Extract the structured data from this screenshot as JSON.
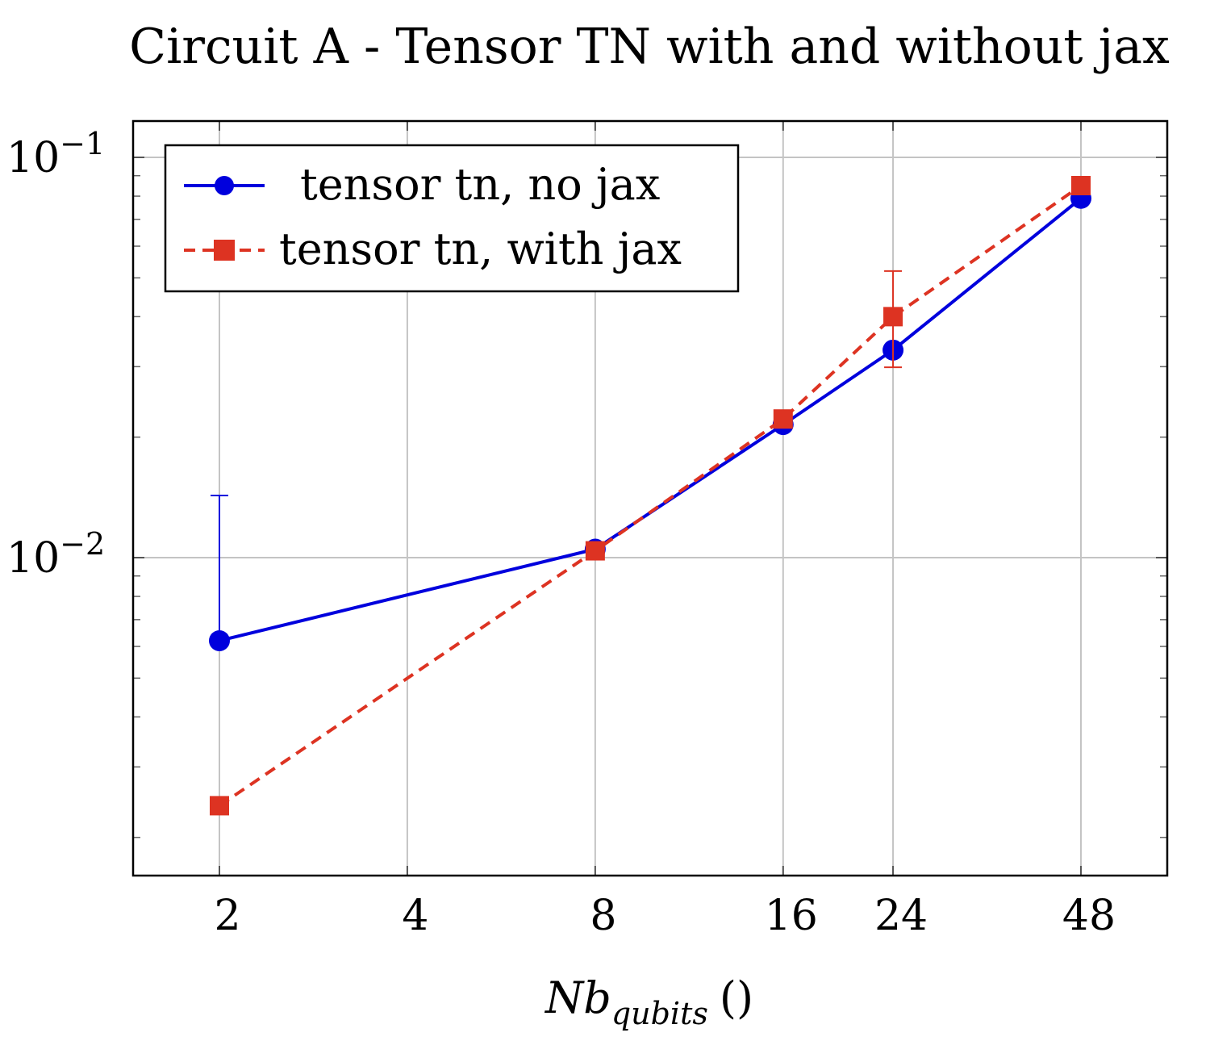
{
  "chart_data": {
    "type": "line",
    "title": "Circuit A - Tensor TN with and without jax",
    "xlabel": {
      "main": "Nb",
      "sub": "qubits",
      "units": "()"
    },
    "ylabel": "",
    "x_categories": [
      "2",
      "4",
      "8",
      "16",
      "24",
      "48"
    ],
    "x_scale": "log2",
    "y_scale": "log",
    "ylim": [
      0.0017,
      0.12
    ],
    "y_ticks": [
      {
        "base": "10",
        "exp": "−1",
        "value": 0.1
      },
      {
        "base": "10",
        "exp": "−2",
        "value": 0.01
      }
    ],
    "grid": true,
    "legend_position": "top-left",
    "series": [
      {
        "name": "tensor tn, no jax",
        "color": "#0000dd",
        "marker": "circle",
        "line": "solid",
        "points": [
          {
            "x": 2,
            "y": 0.0062,
            "err_up": 0.0143,
            "err_down": null
          },
          {
            "x": 8,
            "y": 0.0105
          },
          {
            "x": 16,
            "y": 0.0215
          },
          {
            "x": 24,
            "y": 0.033
          },
          {
            "x": 48,
            "y": 0.079
          }
        ]
      },
      {
        "name": "tensor tn, with jax",
        "color": "#dd3322",
        "marker": "square",
        "line": "dashed",
        "points": [
          {
            "x": 2,
            "y": 0.0024
          },
          {
            "x": 8,
            "y": 0.0104
          },
          {
            "x": 16,
            "y": 0.0222
          },
          {
            "x": 24,
            "y": 0.04,
            "err_up": 0.052,
            "err_down": 0.0299
          },
          {
            "x": 48,
            "y": 0.085
          }
        ]
      }
    ]
  }
}
